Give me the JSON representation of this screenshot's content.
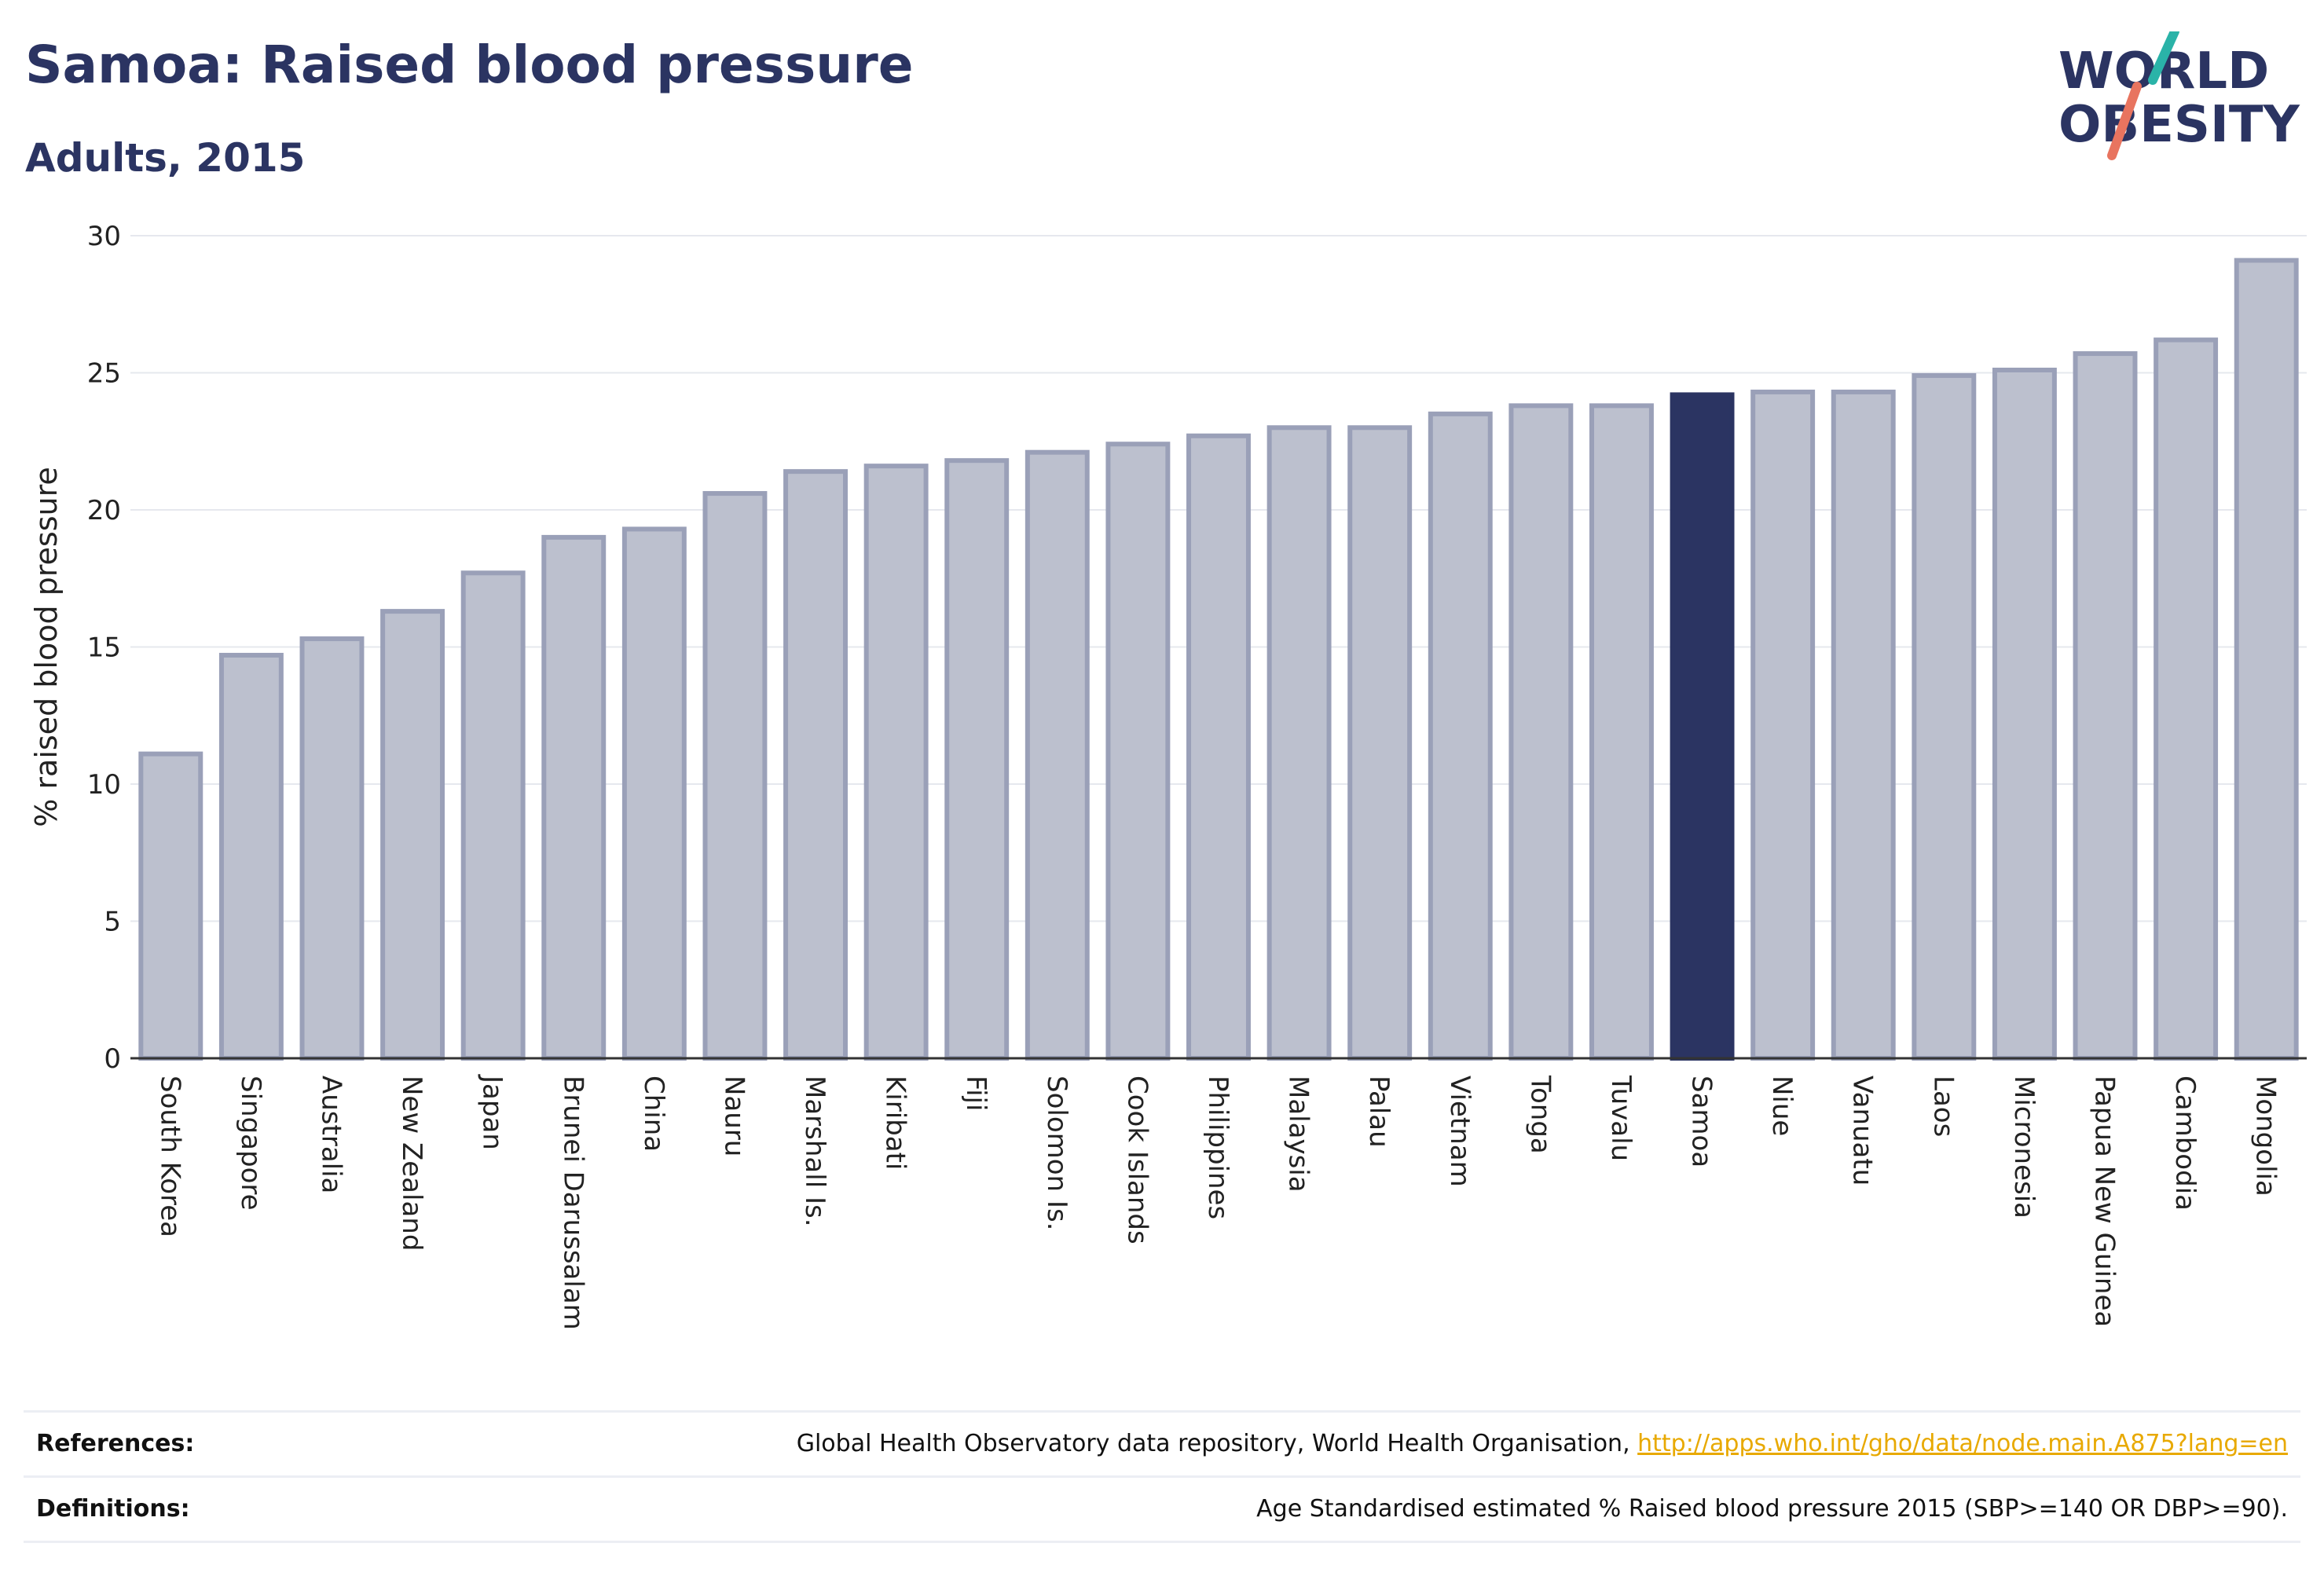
{
  "header": {
    "title": "Samoa: Raised blood pressure",
    "subtitle": "Adults, 2015",
    "logo_line1": "WORLD",
    "logo_line2": "OBESITY"
  },
  "colors": {
    "bar_fill": "#bcc0ce",
    "bar_stroke": "#9aa0b8",
    "highlight": "#2b3462",
    "grid": "#e6e8ee",
    "link": "#e8a900",
    "logo_teal": "#2ab3a8",
    "logo_coral": "#e8745f"
  },
  "chart_data": {
    "type": "bar",
    "ylabel": "% raised blood pressure",
    "ylim": [
      0,
      30
    ],
    "yticks": [
      0,
      5,
      10,
      15,
      20,
      25,
      30
    ],
    "grid": true,
    "highlight": "Samoa",
    "categories": [
      "South Korea",
      "Singapore",
      "Australia",
      "New Zealand",
      "Japan",
      "Brunei Darussalam",
      "China",
      "Nauru",
      "Marshall Is.",
      "Kiribati",
      "Fiji",
      "Solomon Is.",
      "Cook Islands",
      "Philippines",
      "Malaysia",
      "Palau",
      "Vietnam",
      "Tonga",
      "Tuvalu",
      "Samoa",
      "Niue",
      "Vanuatu",
      "Laos",
      "Micronesia",
      "Papua New Guinea",
      "Cambodia",
      "Mongolia"
    ],
    "values": [
      11.1,
      14.7,
      15.3,
      16.3,
      17.7,
      19.0,
      19.3,
      20.6,
      21.4,
      21.6,
      21.8,
      22.1,
      22.4,
      22.7,
      23.0,
      23.0,
      23.5,
      23.8,
      23.8,
      24.2,
      24.3,
      24.3,
      24.9,
      25.1,
      25.7,
      26.2,
      29.1
    ]
  },
  "footer": {
    "references_label": "References:",
    "references_text": "Global Health Observatory data repository, World Health Organisation, ",
    "references_link": "http://apps.who.int/gho/data/node.main.A875?lang=en",
    "definitions_label": "Definitions:",
    "definitions_text": "Age Standardised estimated % Raised blood pressure 2015 (SBP>=140 OR DBP>=90)."
  }
}
